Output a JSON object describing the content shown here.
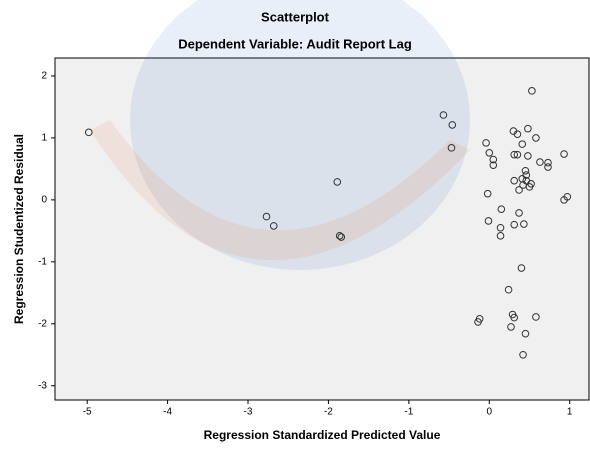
{
  "chart_data": {
    "type": "scatter",
    "title": "Scatterplot",
    "subtitle": "Dependent Variable: Audit Report Lag",
    "xlabel": "Regression Standardized Predicted Value",
    "ylabel": "Regression Studentized Residual",
    "x": [
      -4.98,
      -1.89,
      -2.77,
      -2.68,
      -1.86,
      -1.84,
      -0.57,
      -0.46,
      -0.47,
      0.53,
      -0.04,
      0,
      0.05,
      0.05,
      0.3,
      0.35,
      0.48,
      0.58,
      0.41,
      0.31,
      0.35,
      0.48,
      0.63,
      0.73,
      0.73,
      0.93,
      0.45,
      0.46,
      0.41,
      0.46,
      0.31,
      0.52,
      0.42,
      0.5,
      0.37,
      -0.02,
      0.97,
      0.93,
      0.15,
      -0.01,
      0.37,
      0.31,
      0.43,
      0.14,
      0.14,
      0.4,
      0.24,
      -0.12,
      -0.14,
      0.29,
      0.31,
      0.58,
      0.27,
      0.45,
      0.42
    ],
    "y": [
      1.09,
      0.29,
      -0.27,
      -0.42,
      -0.58,
      -0.6,
      1.37,
      1.21,
      0.84,
      1.76,
      0.92,
      0.76,
      0.65,
      0.56,
      1.11,
      1.06,
      1.15,
      1.0,
      0.9,
      0.73,
      0.73,
      0.71,
      0.61,
      0.6,
      0.53,
      0.74,
      0.47,
      0.4,
      0.34,
      0.31,
      0.31,
      0.26,
      0.24,
      0.21,
      0.16,
      0.1,
      0.05,
      0.0,
      -0.15,
      -0.34,
      -0.21,
      -0.4,
      -0.39,
      -0.45,
      -0.58,
      -1.1,
      -1.45,
      -1.92,
      -1.97,
      -1.85,
      -1.9,
      -1.89,
      -2.05,
      -2.16,
      -2.5
    ],
    "xlim": [
      -5.4,
      1.24
    ],
    "ylim": [
      -3.23,
      2.29
    ],
    "xticks": [
      -5,
      -4,
      -3,
      -2,
      -1,
      0,
      1
    ],
    "yticks": [
      -3,
      -2,
      -1,
      0,
      1,
      2
    ],
    "marker_color": "#333333",
    "background": "#f0f0f0"
  }
}
